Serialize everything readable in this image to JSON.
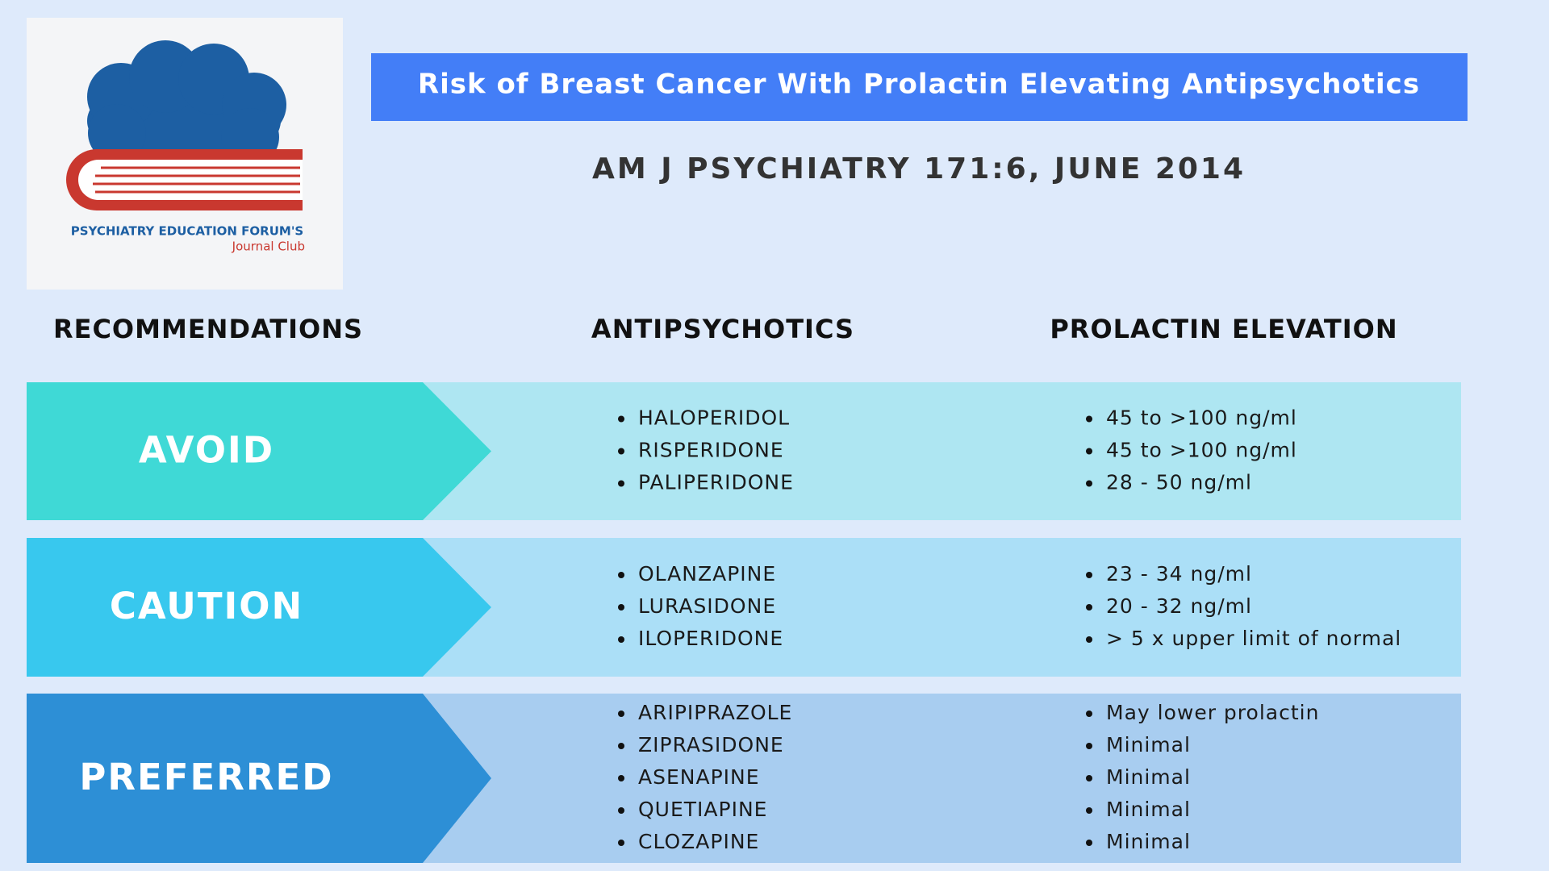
{
  "logo": {
    "line1": "PSYCHIATRY EDUCATION FORUM'S",
    "line2": "Journal Club"
  },
  "header": {
    "title": "Risk of Breast Cancer With Prolactin Elevating Antipsychotics",
    "subtitle": "AM J PSYCHIATRY 171:6, JUNE 2014"
  },
  "table": {
    "columns": [
      "RECOMMENDATIONS",
      "ANTIPSYCHOTICS",
      "PROLACTIN ELEVATION"
    ],
    "rows": [
      {
        "label": "AVOID",
        "drugs": [
          "HALOPERIDOL",
          "RISPERIDONE",
          "PALIPERIDONE"
        ],
        "prolactin": [
          "45 to >100 ng/ml",
          "45 to >100 ng/ml",
          "28 - 50 ng/ml"
        ]
      },
      {
        "label": "CAUTION",
        "drugs": [
          "OLANZAPINE",
          "LURASIDONE",
          "ILOPERIDONE"
        ],
        "prolactin": [
          "23 - 34 ng/ml",
          "20 - 32 ng/ml",
          "> 5 x upper limit of normal"
        ]
      },
      {
        "label": "PREFERRED",
        "drugs": [
          "ARIPIPRAZOLE",
          "ZIPRASIDONE",
          "ASENAPINE",
          "QUETIAPINE",
          "CLOZAPINE"
        ],
        "prolactin": [
          "May lower prolactin",
          "Minimal",
          "Minimal",
          "Minimal",
          "Minimal"
        ]
      }
    ]
  }
}
